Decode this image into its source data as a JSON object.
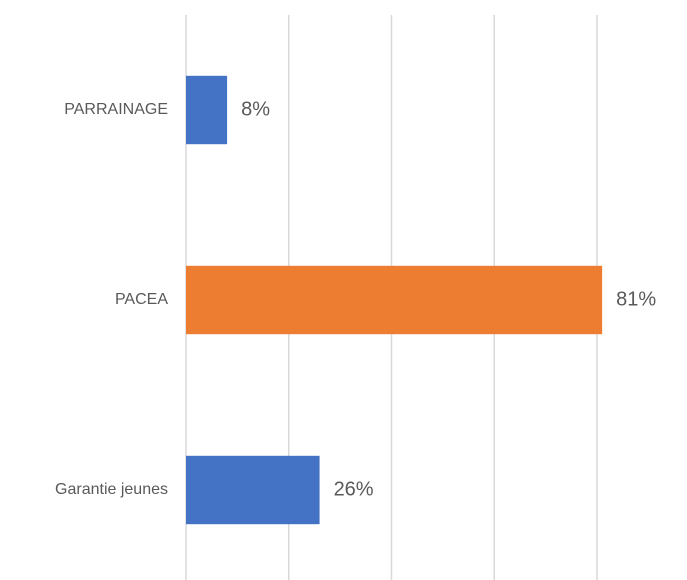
{
  "chart_data": {
    "type": "barh",
    "categories": [
      "PARRAINAGE",
      "PACEA",
      "Garantie jeunes"
    ],
    "values": [
      8,
      81,
      26
    ],
    "value_labels": [
      "8%",
      "81%",
      "26%"
    ],
    "colors": [
      "#4472c4",
      "#ed7d31",
      "#4472c4"
    ],
    "xlim": [
      0,
      80
    ],
    "xticks": [
      0,
      20,
      40,
      60,
      80
    ],
    "grid": true
  }
}
